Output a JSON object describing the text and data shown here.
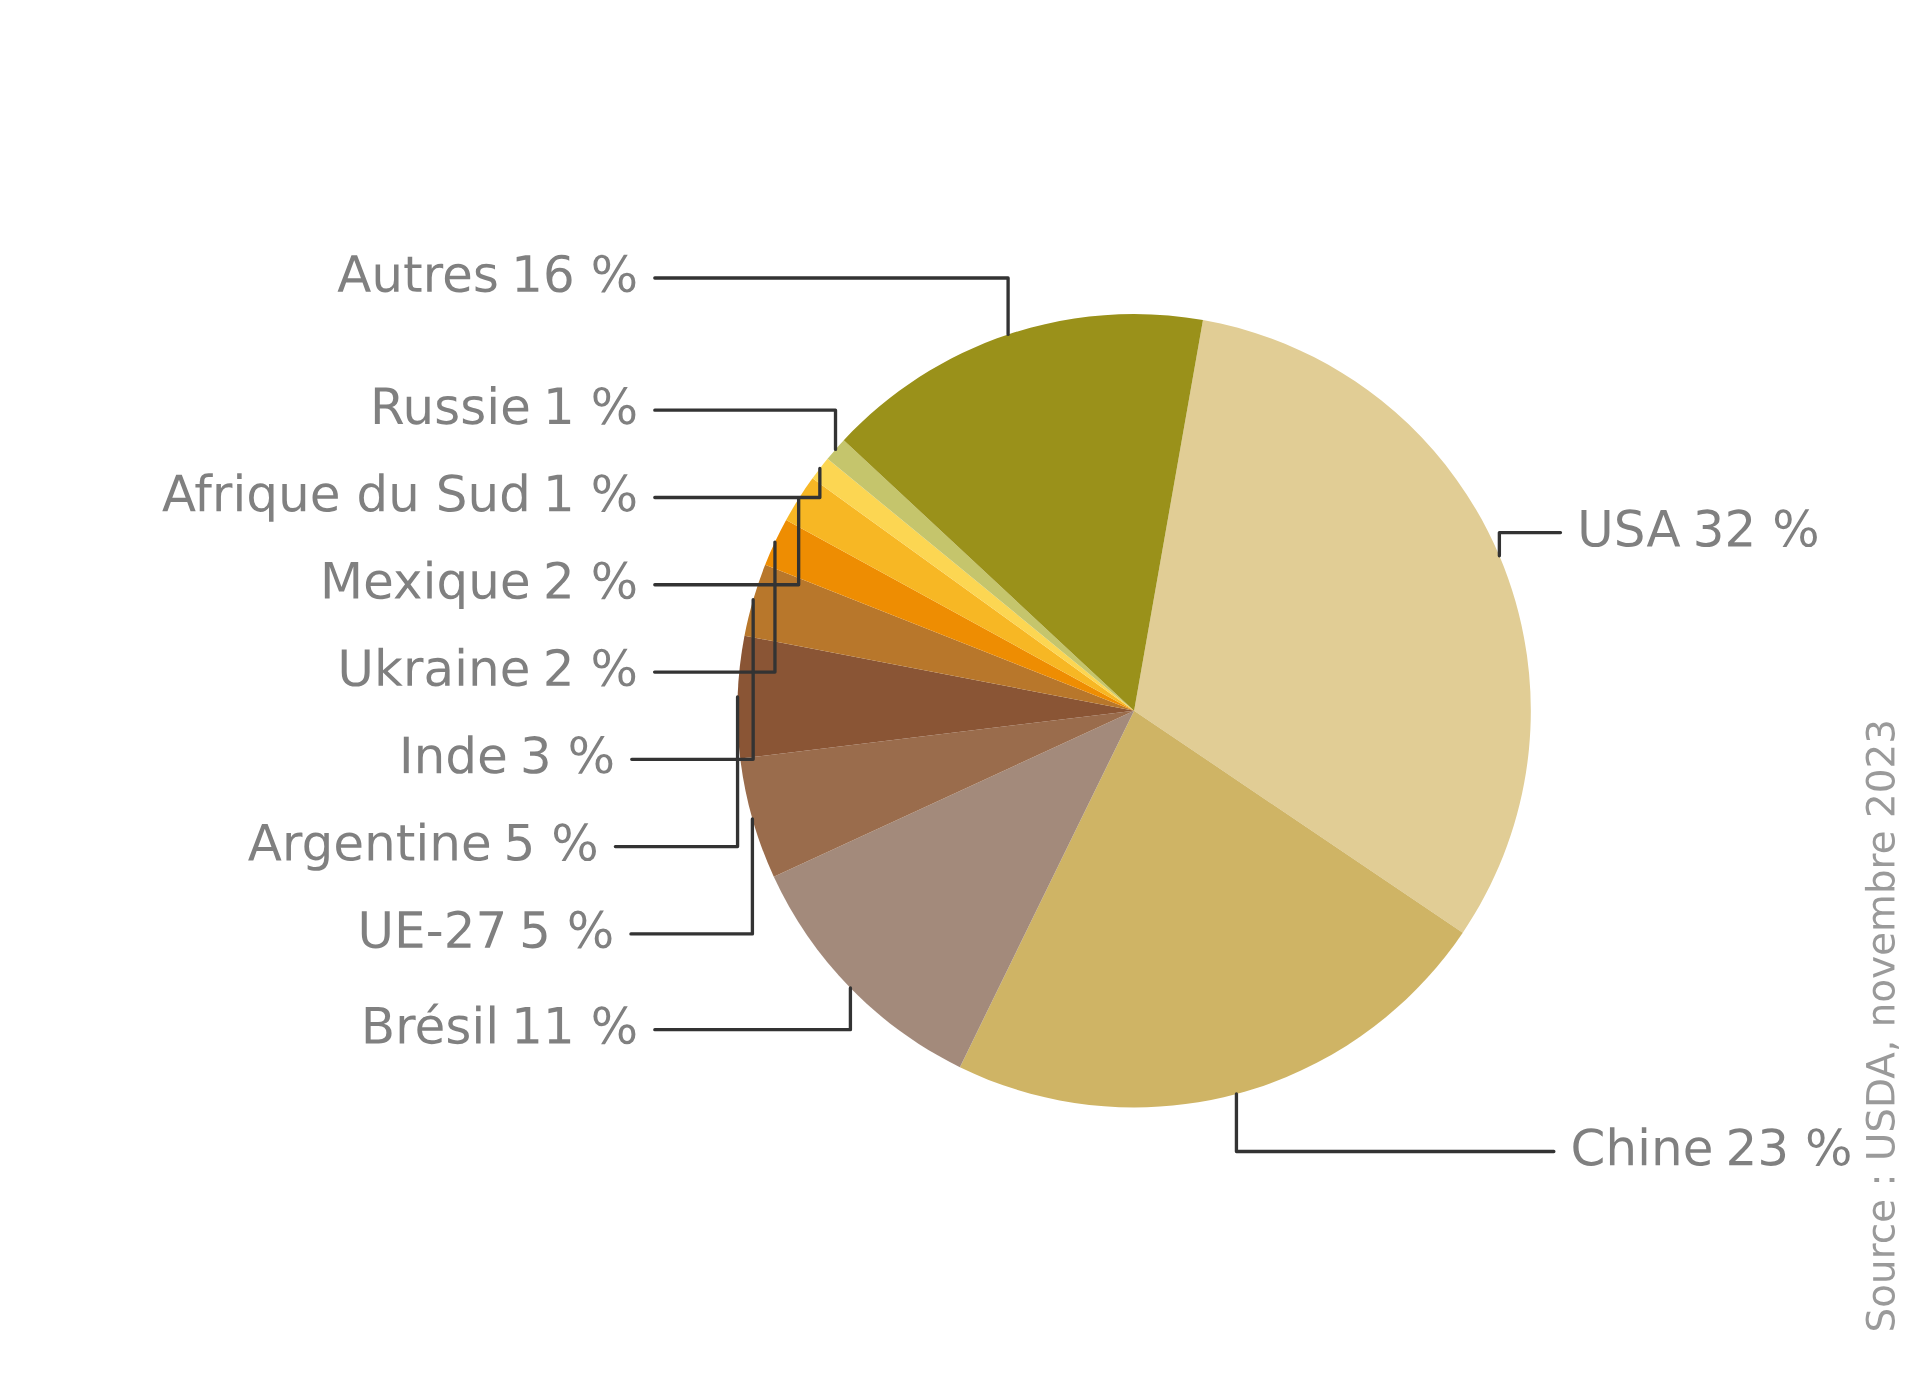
{
  "chart_data": {
    "type": "pie",
    "categories": [
      "USA",
      "Chine",
      "Brésil",
      "UE-27",
      "Argentine",
      "Inde",
      "Ukraine",
      "Mexique",
      "Afrique du Sud",
      "Russie",
      "Autres"
    ],
    "values": [
      32,
      23,
      11,
      5,
      5,
      3,
      2,
      2,
      1,
      1,
      16
    ],
    "value_labels": [
      "32 %",
      "23 %",
      "11 %",
      "5 %",
      "5 %",
      "3 %",
      "2 %",
      "2 %",
      "1 %",
      "1 %",
      "16 %"
    ],
    "colors": [
      "#e1cd95",
      "#cfb465",
      "#a38a7b",
      "#9a6c4c",
      "#8a5535",
      "#b8772b",
      "#ee8d02",
      "#f7b724",
      "#fcd652",
      "#c5c56c",
      "#9a911a"
    ],
    "annotations": [
      "Source : USDA, novembre 2023"
    ]
  }
}
